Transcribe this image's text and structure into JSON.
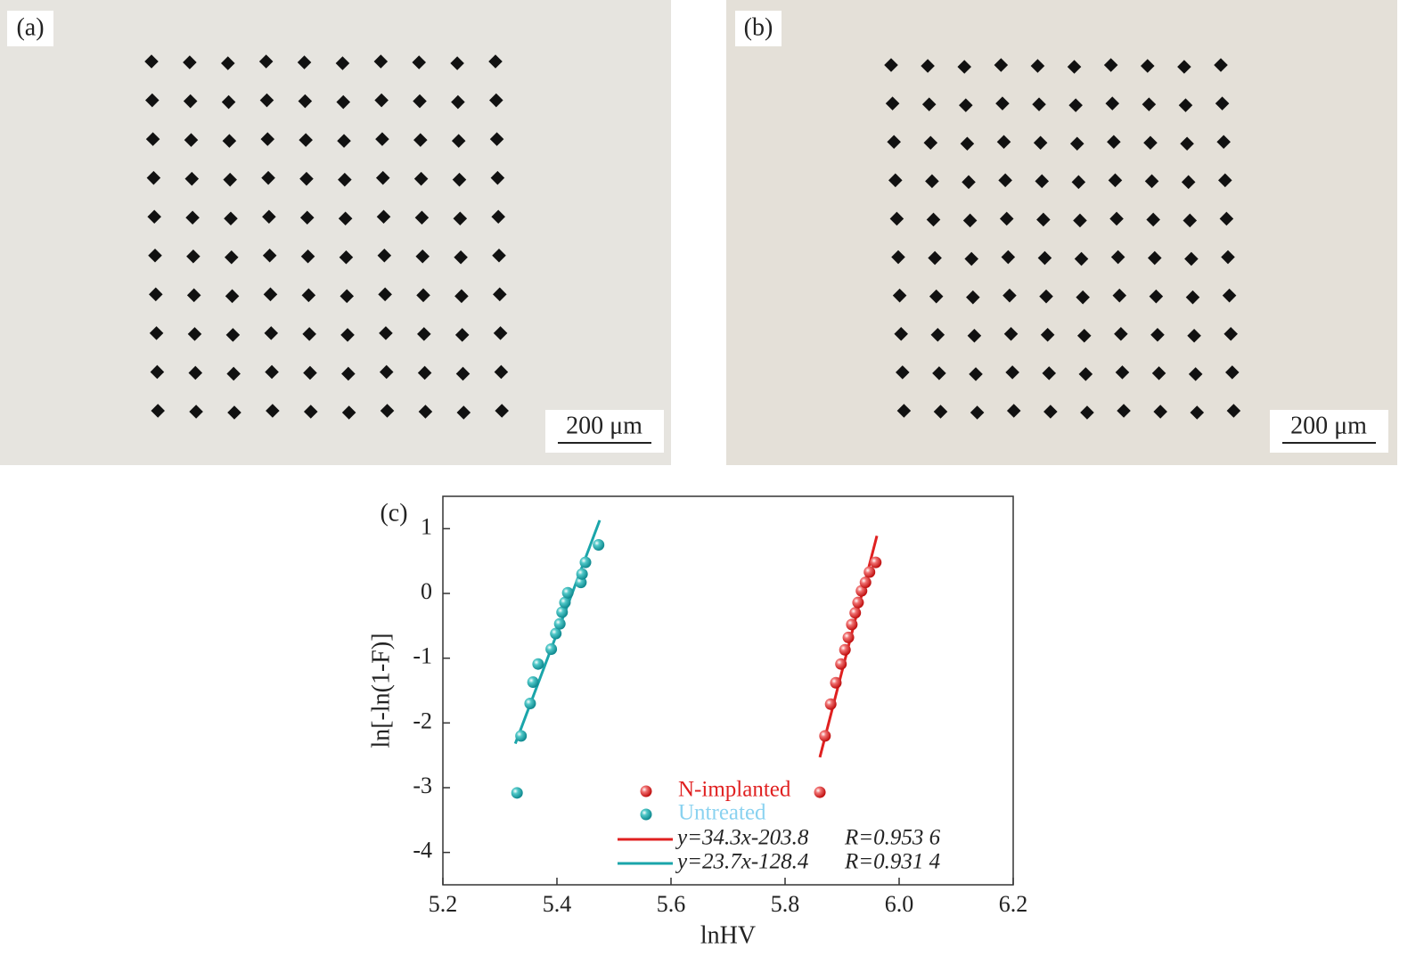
{
  "panels": [
    {
      "label": "(a)",
      "scale_bar": "200 μm"
    },
    {
      "label": "(b)",
      "scale_bar": "200 μm"
    }
  ],
  "chart_data": {
    "type": "scatter",
    "panel_label": "(c)",
    "x_label": "lnHV",
    "y_label": "ln[-ln(1-F)]",
    "xlim": [
      5.2,
      6.2
    ],
    "ylim": [
      -4.5,
      1.5
    ],
    "xticks": [
      5.2,
      5.4,
      5.6,
      5.8,
      {
        "value": 6,
        "label": "6.0"
      },
      6.2
    ],
    "yticks": [
      -4,
      -3,
      -2,
      -1,
      0,
      1
    ],
    "legend": "lower right",
    "series": [
      {
        "name": "N-implanted",
        "color": "#d8262a",
        "label_color": "#e02020",
        "x": [
          5.861,
          5.87,
          5.88,
          5.889,
          5.898,
          5.905,
          5.911,
          5.917,
          5.923,
          5.928,
          5.934,
          5.941,
          5.948,
          5.959
        ],
        "values": [
          -3.07,
          -2.2,
          -1.71,
          -1.38,
          -1.09,
          -0.87,
          -0.68,
          -0.48,
          -0.3,
          -0.14,
          0.04,
          0.17,
          0.33,
          0.48
        ]
      },
      {
        "name": "Untreated",
        "color": "#1aa5aa",
        "label_color": "#8ad2f0",
        "x": [
          5.33,
          5.337,
          5.353,
          5.358,
          5.367,
          5.39,
          5.398,
          5.405,
          5.409,
          5.414,
          5.419,
          5.442,
          5.444,
          5.45,
          5.473
        ],
        "values": [
          -3.08,
          -2.2,
          -1.7,
          -1.37,
          -1.09,
          -0.86,
          -0.62,
          -0.47,
          -0.29,
          -0.14,
          0.01,
          0.17,
          0.3,
          0.48,
          0.75
        ]
      }
    ],
    "fits": [
      {
        "name": "y=34.3x-203.8",
        "r_label": "R=0.953 6",
        "color": "#e02020",
        "x": [
          5.861,
          5.961
        ],
        "values": [
          -2.53,
          0.89
        ]
      },
      {
        "name": "y=23.7x-128.4",
        "r_label": "R=0.931 4",
        "color": "#1aa5aa",
        "x": [
          5.327,
          5.475
        ],
        "values": [
          -2.32,
          1.13
        ]
      }
    ]
  }
}
